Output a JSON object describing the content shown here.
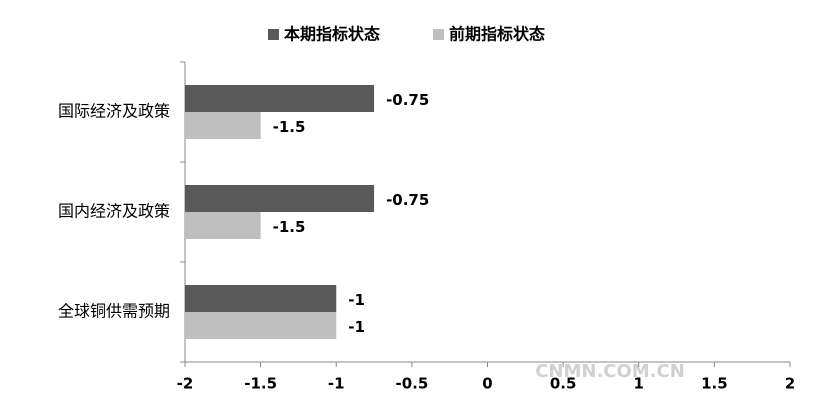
{
  "chart_data": {
    "type": "bar",
    "orientation": "horizontal",
    "categories": [
      "国际经济及政策",
      "国内经济及政策",
      "全球铜供需预期"
    ],
    "series": [
      {
        "name": "本期指标状态",
        "color": "#595959",
        "values": [
          -0.75,
          -0.75,
          -1
        ]
      },
      {
        "name": "前期指标状态",
        "color": "#bfbfbf",
        "values": [
          -1.5,
          -1.5,
          -1
        ]
      }
    ],
    "xlim": [
      -2,
      2
    ],
    "xticks": [
      -2,
      -1.5,
      -1,
      -0.5,
      0,
      0.5,
      1,
      1.5,
      2
    ],
    "legend": "top",
    "watermark": "CNMN.COM.CN"
  }
}
